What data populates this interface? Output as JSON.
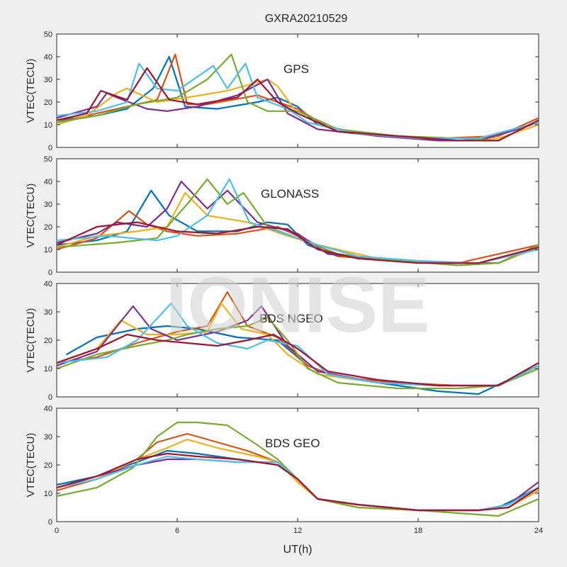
{
  "figure": {
    "title": "GXRA20210529",
    "xlabel": "UT(h)",
    "watermark": "IONISE"
  },
  "colors": [
    "#0072bd",
    "#d95319",
    "#edb120",
    "#7e2f8e",
    "#77ac30",
    "#4dbeee",
    "#a2142f"
  ],
  "chart_data": [
    {
      "type": "line",
      "label": "GPS",
      "ylabel": "VTEC(TECU)",
      "xlim": [
        0,
        24
      ],
      "ylim": [
        0,
        50
      ],
      "xticks": [
        0,
        6,
        12,
        18,
        24
      ],
      "yticks": [
        0,
        10,
        20,
        30,
        40,
        50
      ],
      "grid": false,
      "series": [
        {
          "x": [
            0,
            2,
            3.5,
            4.8,
            5.6,
            6.4,
            8,
            10,
            11,
            12,
            13,
            15,
            18,
            21.5,
            24
          ],
          "y": [
            12,
            14,
            17,
            26,
            40,
            18,
            17,
            20,
            22,
            18,
            10,
            6,
            4,
            4,
            11
          ]
        },
        {
          "x": [
            0,
            3,
            5,
            5.9,
            6.5,
            7.5,
            10,
            12,
            13.5,
            16,
            19,
            22,
            24
          ],
          "y": [
            11,
            17,
            21,
            41,
            19,
            19,
            23,
            17,
            9,
            5,
            4,
            5,
            13
          ]
        },
        {
          "x": [
            0,
            1.5,
            3,
            3.5,
            5,
            6.5,
            8.5,
            10.5,
            11,
            12,
            14,
            17,
            20,
            22,
            24
          ],
          "y": [
            10,
            14,
            24,
            26,
            20,
            22,
            25,
            30,
            27,
            15,
            7,
            5,
            4,
            4,
            10
          ]
        },
        {
          "x": [
            0,
            2,
            2.5,
            3,
            4.5,
            5.5,
            7,
            9,
            10.5,
            11.5,
            13,
            16,
            19,
            21,
            24
          ],
          "y": [
            13,
            18,
            24,
            22,
            17,
            16,
            18,
            23,
            30,
            15,
            8,
            5,
            3,
            3,
            11
          ]
        },
        {
          "x": [
            0,
            2,
            4,
            6,
            7.5,
            8.7,
            9.5,
            10.5,
            12,
            14,
            17,
            20,
            22,
            24
          ],
          "y": [
            11,
            14,
            19,
            22,
            30,
            41,
            20,
            16,
            16,
            8,
            5,
            4,
            3,
            12
          ]
        },
        {
          "x": [
            0,
            2,
            3.5,
            4.1,
            5,
            6,
            7.8,
            8.5,
            9.4,
            10,
            11.5,
            12.5,
            15,
            18,
            21,
            24
          ],
          "y": [
            14,
            16,
            20,
            37,
            26,
            25,
            36,
            26,
            37,
            22,
            17,
            11,
            6,
            4,
            4,
            11
          ]
        },
        {
          "x": [
            0,
            1.5,
            2.2,
            3.5,
            4.5,
            5.6,
            7,
            9,
            10,
            11,
            12,
            14,
            17,
            20,
            22,
            24
          ],
          "y": [
            12,
            15,
            25,
            21,
            35,
            21,
            19,
            22,
            30,
            20,
            15,
            7,
            5,
            3,
            3,
            12
          ]
        }
      ]
    },
    {
      "type": "line",
      "label": "GLONASS",
      "ylabel": "VTEC(TECU)",
      "xlim": [
        0,
        24
      ],
      "ylim": [
        0,
        50
      ],
      "xticks": [
        0,
        6,
        12,
        18,
        24
      ],
      "yticks": [
        0,
        10,
        20,
        30,
        40,
        50
      ],
      "grid": false,
      "series": [
        {
          "x": [
            0,
            2,
            3.5,
            4.7,
            5.6,
            7,
            9,
            10.5,
            11.5,
            12.5,
            14,
            17,
            20,
            22,
            24
          ],
          "y": [
            12,
            14,
            18,
            36,
            25,
            18,
            18,
            22,
            21,
            12,
            7,
            5,
            4,
            4,
            11
          ]
        },
        {
          "x": [
            0,
            2,
            3.6,
            4.5,
            5.5,
            7,
            9,
            11,
            12.5,
            14,
            17,
            20,
            24
          ],
          "y": [
            10,
            15,
            27,
            21,
            18,
            16,
            17,
            20,
            14,
            7,
            5,
            4,
            12
          ]
        },
        {
          "x": [
            0,
            2,
            4,
            5.5,
            6.4,
            7.5,
            9.5,
            11.5,
            13,
            16,
            19,
            22,
            24
          ],
          "y": [
            11,
            16,
            18,
            20,
            35,
            25,
            22,
            16,
            12,
            6,
            4,
            4,
            11
          ]
        },
        {
          "x": [
            0,
            2,
            3,
            4.5,
            5.5,
            6.2,
            7.5,
            8.5,
            10,
            12,
            13.5,
            16,
            19,
            22,
            24
          ],
          "y": [
            13,
            17,
            22,
            20,
            28,
            40,
            28,
            36,
            22,
            17,
            8,
            6,
            4,
            4,
            12
          ]
        },
        {
          "x": [
            0,
            3,
            5,
            6.5,
            7.5,
            8.5,
            9.3,
            10.5,
            12,
            14,
            17,
            20,
            22,
            24
          ],
          "y": [
            11,
            13,
            15,
            30,
            41,
            30,
            35,
            20,
            15,
            8,
            5,
            3,
            4,
            12
          ]
        },
        {
          "x": [
            0,
            2.5,
            5,
            6,
            7.5,
            8.6,
            9.6,
            11,
            13,
            15,
            18,
            21,
            24
          ],
          "y": [
            14,
            16,
            14,
            16,
            25,
            41,
            22,
            18,
            12,
            7,
            5,
            4,
            10
          ]
        },
        {
          "x": [
            0,
            2,
            4,
            6,
            8,
            10,
            11.5,
            13,
            15,
            18,
            21,
            24
          ],
          "y": [
            12,
            20,
            22,
            18,
            17,
            20,
            19,
            10,
            6,
            4,
            4,
            11
          ]
        }
      ]
    },
    {
      "type": "line",
      "label": "BDS NGEO",
      "ylabel": "VTEC(TECU)",
      "xlim": [
        0,
        24
      ],
      "ylim": [
        0,
        40
      ],
      "xticks": [
        0,
        6,
        12,
        18,
        24
      ],
      "yticks": [
        0,
        10,
        20,
        30,
        40
      ],
      "grid": false,
      "series": [
        {
          "x": [
            0.5,
            2,
            4,
            5.5,
            7,
            9,
            11,
            12.5,
            14,
            17,
            19,
            21,
            24
          ],
          "y": [
            15,
            21,
            24,
            25,
            24,
            21,
            20,
            11,
            7,
            4,
            2,
            1,
            11
          ]
        },
        {
          "x": [
            0,
            2,
            4,
            6,
            7.5,
            8.5,
            9.5,
            11,
            12.5,
            14,
            17,
            20,
            22,
            24
          ],
          "y": [
            12,
            14,
            19,
            23,
            25,
            37,
            25,
            21,
            11,
            7,
            5,
            4,
            4,
            12
          ]
        },
        {
          "x": [
            0,
            2,
            3.2,
            4.5,
            6,
            7.5,
            8.2,
            9.2,
            10.5,
            11.5,
            13,
            16,
            19,
            22,
            24
          ],
          "y": [
            12,
            17,
            27,
            22,
            22,
            23,
            33,
            24,
            22,
            15,
            8,
            5,
            4,
            4,
            11
          ]
        },
        {
          "x": [
            0,
            2,
            3.8,
            4.7,
            6,
            8,
            9.5,
            10.2,
            11.5,
            13,
            16,
            19,
            22,
            24
          ],
          "y": [
            11,
            16,
            32,
            24,
            20,
            23,
            27,
            32,
            18,
            9,
            5,
            4,
            4,
            11
          ]
        },
        {
          "x": [
            0,
            2,
            4,
            5.5,
            6.5,
            8,
            9.5,
            10.5,
            11.5,
            12.5,
            14,
            17,
            20,
            22,
            24
          ],
          "y": [
            10,
            15,
            18,
            20,
            22,
            24,
            25,
            28,
            20,
            10,
            5,
            3,
            3,
            4,
            10
          ]
        },
        {
          "x": [
            0,
            2.5,
            4,
            5.7,
            6.5,
            8,
            9.5,
            10.5,
            12,
            13.5,
            16,
            19,
            22,
            24
          ],
          "y": [
            12,
            14,
            20,
            33,
            25,
            19,
            17,
            20,
            18,
            8,
            5,
            4,
            4,
            11
          ]
        },
        {
          "x": [
            0,
            2,
            3.5,
            5,
            6.5,
            8,
            9.5,
            10.8,
            12,
            13.5,
            16,
            19,
            22,
            24
          ],
          "y": [
            12,
            17,
            22,
            20,
            19,
            18,
            20,
            22,
            17,
            9,
            6,
            4,
            4,
            12
          ]
        }
      ]
    },
    {
      "type": "line",
      "label": "BDS GEO",
      "ylabel": "VTEC(TECU)",
      "xlim": [
        0,
        24
      ],
      "ylim": [
        0,
        40
      ],
      "xticks": [
        0,
        6,
        12,
        18,
        24
      ],
      "yticks": [
        0,
        10,
        20,
        30,
        40
      ],
      "grid": false,
      "series": [
        {
          "x": [
            0,
            2,
            4,
            5.5,
            7,
            9,
            11,
            12,
            13,
            15,
            18,
            21,
            22,
            24
          ],
          "y": [
            13,
            16,
            21,
            25,
            24,
            22,
            20,
            15,
            8,
            6,
            4,
            4,
            5,
            12
          ]
        },
        {
          "x": [
            0,
            2,
            4,
            5,
            6.5,
            8,
            9.5,
            11,
            12,
            13,
            15,
            18,
            21,
            22.5,
            24
          ],
          "y": [
            11,
            15,
            22,
            28,
            31,
            28,
            25,
            21,
            14,
            8,
            6,
            4,
            4,
            5,
            11
          ]
        },
        {
          "x": [
            0,
            2,
            4,
            5.5,
            6.5,
            8,
            10,
            11,
            12,
            13,
            15,
            18,
            21,
            22.5,
            24
          ],
          "y": [
            12,
            15,
            22,
            26,
            29,
            26,
            23,
            21,
            14,
            8,
            5,
            4,
            4,
            5,
            11
          ]
        },
        {
          "x": [
            0,
            2,
            4,
            5.5,
            7,
            9,
            11,
            12,
            13,
            15,
            18,
            21,
            22.5,
            24
          ],
          "y": [
            12,
            16,
            20,
            22,
            22,
            21,
            21,
            15,
            8,
            6,
            4,
            4,
            6,
            14
          ]
        },
        {
          "x": [
            0,
            2,
            3.8,
            5,
            6,
            7,
            8.5,
            10,
            11,
            12,
            13,
            15,
            18,
            20,
            22,
            23,
            24
          ],
          "y": [
            9,
            12,
            19,
            30,
            35,
            35,
            34,
            27,
            22,
            15,
            8,
            5,
            4,
            3,
            2,
            5,
            8
          ]
        },
        {
          "x": [
            0,
            2,
            4,
            5.5,
            7,
            9,
            11,
            12,
            13,
            15,
            18,
            21,
            22.5,
            24
          ],
          "y": [
            12,
            15,
            20,
            23,
            22,
            21,
            21,
            15,
            8,
            6,
            4,
            4,
            6,
            12
          ]
        },
        {
          "x": [
            0,
            2,
            4,
            5.5,
            7,
            9,
            11,
            12,
            13,
            15,
            18,
            21,
            22.5,
            24
          ],
          "y": [
            12,
            16,
            22,
            24,
            23,
            22,
            20,
            15,
            8,
            6,
            4,
            4,
            5,
            12
          ]
        }
      ]
    }
  ]
}
